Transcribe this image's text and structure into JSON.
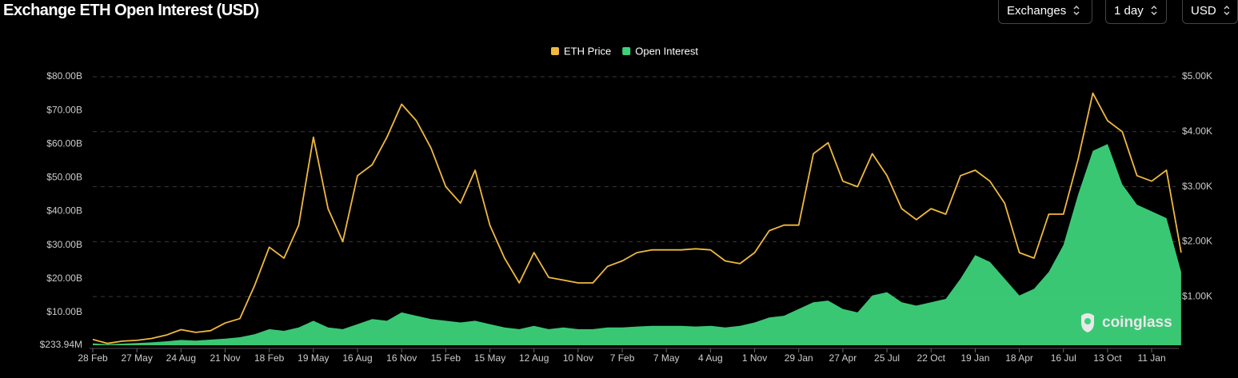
{
  "title": "Exchange ETH Open Interest (USD)",
  "controls": [
    "Exchanges",
    "1 day",
    "USD"
  ],
  "watermark": "coinglass",
  "chart_data": {
    "type": "line",
    "categories": [
      "28 Feb",
      null,
      null,
      "27 May",
      null,
      null,
      "24 Aug",
      null,
      null,
      "21 Nov",
      null,
      null,
      "18 Feb",
      null,
      null,
      "19 May",
      null,
      null,
      "16 Aug",
      null,
      null,
      "16 Nov",
      null,
      null,
      "15 Feb",
      null,
      null,
      "15 May",
      null,
      null,
      "12 Aug",
      null,
      null,
      "10 Nov",
      null,
      null,
      "7 Feb",
      null,
      null,
      "7 May",
      null,
      null,
      "4 Aug",
      null,
      null,
      "1 Nov",
      null,
      null,
      "29 Jan",
      null,
      null,
      "27 Apr",
      null,
      null,
      "25 Jul",
      null,
      null,
      "22 Oct",
      null,
      null,
      "19 Jan",
      null,
      null,
      "18 Apr",
      null,
      null,
      "16 Jul",
      null,
      null,
      "13 Oct",
      null,
      null,
      "11 Jan",
      null,
      null
    ],
    "series": [
      {
        "name": "ETH Price",
        "color": "#f0b93e",
        "axis": "y2",
        "kind": "line",
        "values": [
          220,
          150,
          190,
          205,
          240,
          300,
          400,
          350,
          380,
          520,
          600,
          1200,
          1900,
          1700,
          2300,
          3900,
          2600,
          2000,
          3200,
          3400,
          3900,
          4500,
          4200,
          3700,
          3000,
          2700,
          3300,
          2300,
          1700,
          1250,
          1800,
          1350,
          1300,
          1250,
          1250,
          1550,
          1650,
          1800,
          1850,
          1850,
          1850,
          1870,
          1850,
          1650,
          1600,
          1800,
          2200,
          2300,
          2300,
          3600,
          3800,
          3100,
          3000,
          3600,
          3200,
          2600,
          2400,
          2600,
          2500,
          3200,
          3300,
          3100,
          2700,
          1800,
          1700,
          2500,
          2500,
          3500,
          4700,
          4200,
          4000,
          3200,
          3100,
          3300,
          1800
        ]
      },
      {
        "name": "Open Interest",
        "color": "#3dd27a",
        "axis": "y",
        "kind": "area",
        "values": [
          0.8,
          0.5,
          0.7,
          0.9,
          1.1,
          1.4,
          1.8,
          1.6,
          1.9,
          2.2,
          2.6,
          3.5,
          5,
          4.5,
          5.5,
          7.5,
          5.5,
          5,
          6.5,
          8,
          7.5,
          10,
          9,
          8,
          7.5,
          7,
          7.5,
          6.5,
          5.5,
          5,
          6,
          5,
          5.5,
          5,
          5,
          5.5,
          5.5,
          5.8,
          6,
          6,
          6,
          5.8,
          6,
          5.5,
          6,
          7,
          8.5,
          9,
          11,
          13,
          13.5,
          11,
          10,
          15,
          16,
          13,
          12,
          13,
          14,
          20,
          27,
          25,
          20,
          15,
          17,
          22,
          30,
          45,
          58,
          60,
          48,
          42,
          40,
          38,
          22
        ]
      }
    ],
    "ylim": [
      0.23394,
      80
    ],
    "yticks": [
      {
        "value": 0.23394,
        "label": "$233.94M"
      },
      {
        "value": 10,
        "label": "$10.00B"
      },
      {
        "value": 20,
        "label": "$20.00B"
      },
      {
        "value": 30,
        "label": "$30.00B"
      },
      {
        "value": 40,
        "label": "$40.00B"
      },
      {
        "value": 50,
        "label": "$50.00B"
      },
      {
        "value": 60,
        "label": "$60.00B"
      },
      {
        "value": 70,
        "label": "$70.00B"
      },
      {
        "value": 80,
        "label": "$80.00B"
      }
    ],
    "y2lim": [
      116,
      5000
    ],
    "y2ticks": [
      {
        "value": 1000,
        "label": "$1.00K"
      },
      {
        "value": 2000,
        "label": "$2.00K"
      },
      {
        "value": 3000,
        "label": "$3.00K"
      },
      {
        "value": 4000,
        "label": "$4.00K"
      },
      {
        "value": 5000,
        "label": "$5.00K"
      }
    ],
    "grid": true,
    "legend": "top"
  }
}
